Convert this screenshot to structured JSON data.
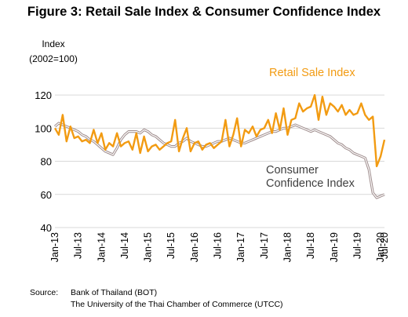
{
  "figure_title": "Figure 3: Retail Sale Index & Consumer Confidence Index",
  "y_axis_label_line1": "Index",
  "y_axis_label_line2": "(2002=100)",
  "source_label": "Source:",
  "source_line1": "Bank of Thailand (BOT)",
  "source_line2": "The University of the Thai Chamber of Commerce (UTCC)",
  "chart_data": {
    "type": "line",
    "title": "Figure 3: Retail Sale Index & Consumer Confidence Index",
    "ylabel": "Index (2002=100)",
    "xlabel": "",
    "ylim": [
      40,
      130
    ],
    "yticks": [
      40,
      60,
      80,
      100,
      120
    ],
    "grid": "horizontal",
    "x_start": "Jan-13",
    "x_end": "Jul-20",
    "x_tick_labels": [
      "Jan-13",
      "Jul-13",
      "Jan-14",
      "Jul-14",
      "Jan-15",
      "Jul-15",
      "Jan-16",
      "Jul-16",
      "Jan-17",
      "Jul-17",
      "Jan-18",
      "Jul-18",
      "Jan-19",
      "Jul-19",
      "Jan-20",
      "Jul-20"
    ],
    "series": [
      {
        "name": "Retail Sale Index",
        "color": "#f29b12",
        "values": [
          100,
          96,
          108,
          92,
          101,
          94,
          95,
          92,
          93,
          91,
          99,
          91,
          97,
          87,
          91,
          89,
          97,
          89,
          91,
          92,
          87,
          97,
          85,
          95,
          86,
          89,
          90,
          87,
          89,
          91,
          92,
          105,
          86,
          94,
          100,
          86,
          91,
          92,
          87,
          90,
          91,
          88,
          90,
          92,
          105,
          89,
          96,
          106,
          89,
          99,
          97,
          101,
          95,
          99,
          100,
          105,
          97,
          109,
          99,
          112,
          96,
          105,
          106,
          115,
          110,
          112,
          113,
          120,
          105,
          119,
          108,
          115,
          113,
          110,
          114,
          108,
          111,
          108,
          109,
          115,
          108,
          105,
          107,
          77,
          83,
          93
        ]
      },
      {
        "name": "Consumer Confidence Index",
        "color": "#9e8c8c",
        "values": [
          101,
          103,
          102,
          101,
          100,
          99,
          98,
          96,
          95,
          93,
          92,
          90,
          88,
          86,
          85,
          84,
          88,
          93,
          96,
          98,
          98,
          98,
          97,
          99,
          98,
          96,
          95,
          93,
          91,
          90,
          89,
          89,
          91,
          92,
          94,
          92,
          91,
          90,
          89,
          89,
          90,
          91,
          92,
          92,
          93,
          94,
          93,
          92,
          91,
          91,
          92,
          93,
          94,
          95,
          96,
          97,
          98,
          98,
          99,
          100,
          100,
          101,
          102,
          101,
          100,
          99,
          98,
          99,
          98,
          97,
          96,
          95,
          93,
          91,
          90,
          88,
          87,
          85,
          84,
          83,
          82,
          75,
          61,
          58,
          59,
          60
        ]
      }
    ],
    "annotations": [
      {
        "text": "Retail Sale Index",
        "series": "Retail Sale Index"
      },
      {
        "text_lines": [
          "Consumer",
          "Confidence Index"
        ],
        "series": "Consumer Confidence Index"
      }
    ]
  }
}
